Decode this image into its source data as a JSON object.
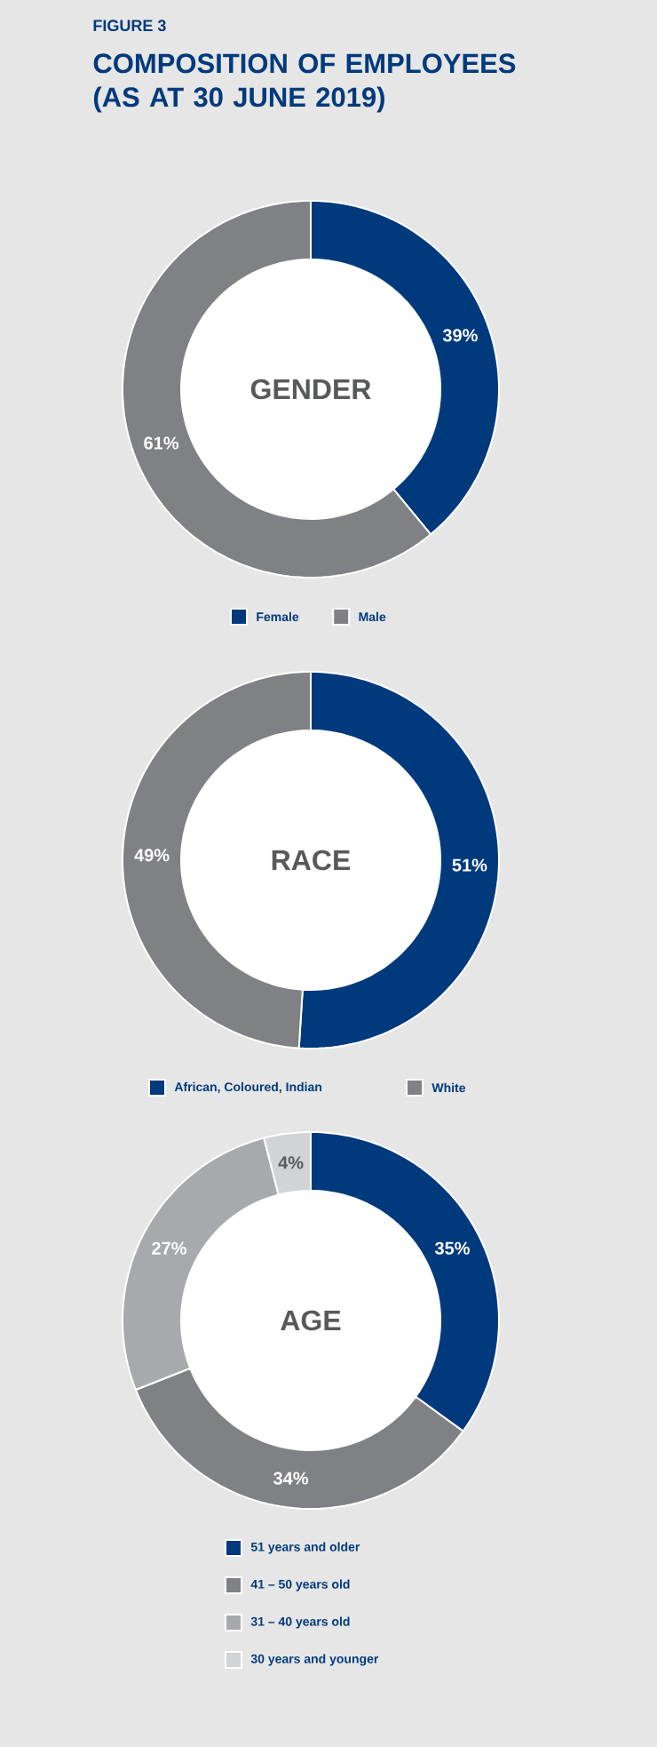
{
  "chart_data": [
    {
      "type": "donut",
      "title": "GENDER",
      "annotations": [
        "FIGURE 3",
        "COMPOSITION OF EMPLOYEES (AS AT 30 JUNE 2019)"
      ],
      "categories": [
        "Female",
        "Male"
      ],
      "values": [
        39,
        61
      ],
      "value_labels": [
        "39%",
        "61%"
      ],
      "colors": [
        "#003a7d",
        "#808184"
      ],
      "legend": "bottom"
    },
    {
      "type": "donut",
      "title": "RACE",
      "categories": [
        "African, Coloured, Indian",
        "White"
      ],
      "values": [
        51,
        49
      ],
      "value_labels": [
        "51%",
        "49%"
      ],
      "colors": [
        "#003a7d",
        "#808184"
      ],
      "legend": "bottom"
    },
    {
      "type": "donut",
      "title": "AGE",
      "categories": [
        "51 years and older",
        "41 – 50 years old",
        "31 – 40 years old",
        "30 years and younger"
      ],
      "values": [
        35,
        34,
        27,
        4
      ],
      "value_labels": [
        "35%",
        "34%",
        "27%",
        "4%"
      ],
      "colors": [
        "#003a7d",
        "#808184",
        "#a7a9ac",
        "#d1d3d4"
      ],
      "legend": "bottom"
    }
  ]
}
